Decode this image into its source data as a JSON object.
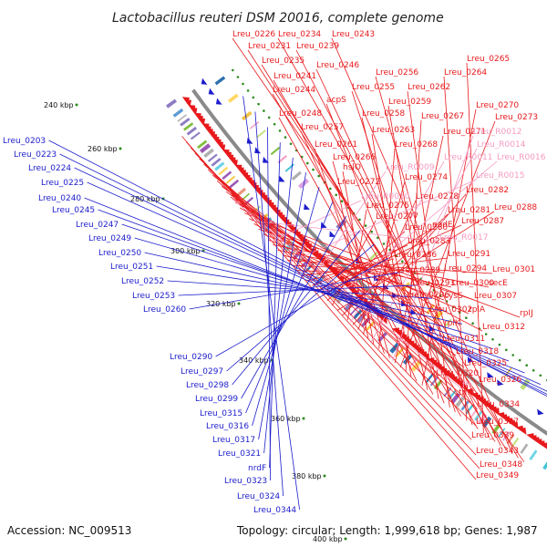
{
  "title": "Lactobacillus reuteri DSM 20016, complete genome",
  "accession": "Accession: NC_009513",
  "topology": "Topology: circular; Length: 1,999,618 bp; Genes: 1,987",
  "colors": {
    "backbone": "#8a8a8a",
    "forward_label": "#e8191c",
    "reverse_label": "#1c1ccc",
    "rna_label": "#f49ac1",
    "tick_dot": "#2e8b1e",
    "forward_arrow": "#e8191c",
    "reverse_arrow": "#1c1ccc"
  },
  "scale_labels": [
    {
      "text": "240 kbp"
    },
    {
      "text": "260 kbp"
    },
    {
      "text": "280 kbp"
    },
    {
      "text": "300 kbp"
    },
    {
      "text": "320 kbp"
    },
    {
      "text": "340 kbp"
    },
    {
      "text": "360 kbp"
    },
    {
      "text": "380 kbp"
    },
    {
      "text": "400 kbp"
    }
  ],
  "reverse_genes": [
    "Lreu_0203",
    "Lreu_0223",
    "Lreu_0224",
    "Lreu_0225",
    "Lreu_0240",
    "Lreu_0245",
    "Lreu_0247",
    "Lreu_0249",
    "Lreu_0250",
    "Lreu_0251",
    "Lreu_0252",
    "Lreu_0253",
    "Lreu_0260",
    "Lreu_0290",
    "Lreu_0297",
    "Lreu_0298",
    "Lreu_0299",
    "Lreu_0315",
    "Lreu_0316",
    "Lreu_0317",
    "Lreu_0321",
    "nrdF",
    "Lreu_0323",
    "Lreu_0324",
    "Lreu_0344"
  ],
  "forward_genes": [
    "Lreu_0226",
    "Lreu_0234",
    "Lreu_0243",
    "Lreu_0231",
    "Lreu_0239",
    "Lreu_0235",
    "Lreu_0246",
    "Lreu_0265",
    "Lreu_0241",
    "Lreu_0256",
    "Lreu_0264",
    "Lreu_0244",
    "Lreu_0255",
    "Lreu_0262",
    "acpS",
    "Lreu_0259",
    "Lreu_0248",
    "Lreu_0258",
    "Lreu_0270",
    "Lreu_0257",
    "Lreu_0263",
    "Lreu_0267",
    "Lreu_0273",
    "Lreu_0271",
    "Lreu_0266",
    "Lreu_0261",
    "Lreu_0268",
    "hslO",
    "Lreu_0272",
    "Lreu_0274",
    "Lreu_0278",
    "Lreu_0282",
    "Lreu_0275",
    "Lreu_0281",
    "Lreu_0288",
    "Lreu_0277",
    "Lreu_0280",
    "nadE",
    "Lreu_0287",
    "Lreu_0283",
    "Lreu_0286",
    "Lreu_0291",
    "Lreu_0289",
    "Lreu_0294",
    "Lreu_0301",
    "Lreu_0293",
    "Lreu_0300",
    "secE",
    "Lreu_0296",
    "cysS",
    "Lreu_0307",
    "Lreu_0302",
    "rplA",
    "rpIJ",
    "rplK",
    "Lreu_0312",
    "Lreu_0311",
    "Lreu_0318",
    "Lreu_0325",
    "Lreu_0320",
    "Lreu_0326",
    "tmk",
    "Lreu_0334",
    "Lreu_0337",
    "Lreu_0339",
    "Lreu_0343",
    "Lreu_0348",
    "Lreu_0349"
  ],
  "rna_genes": [
    "Lreu_R0012",
    "Lreu_R0014",
    "Lreu_R0011",
    "Lreu_R0016",
    "Lreu_R0009",
    "Lreu_R0015",
    "Lreu_R0010",
    "Lreu_R0017",
    "ffs"
  ]
}
